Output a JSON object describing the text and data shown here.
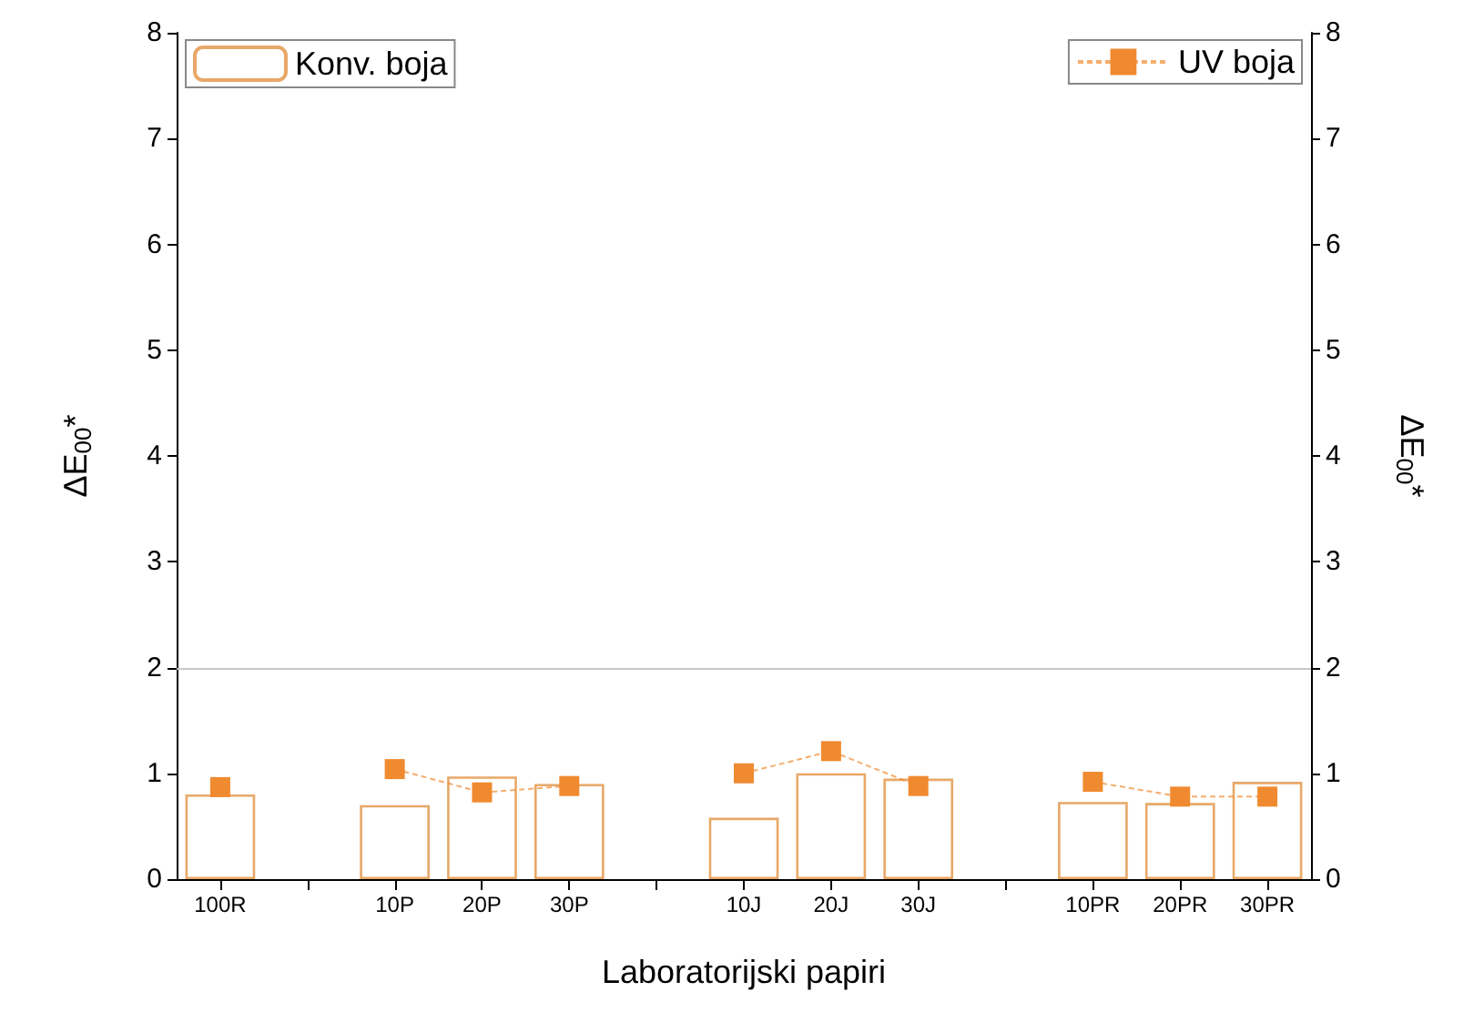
{
  "chart_data": {
    "type": "bar",
    "xlabel": "Laboratorijski papiri",
    "ylabel": "ΔE$_{00}$*",
    "y2label": "ΔE$_{00}$*",
    "categories": [
      "100R",
      null,
      "10P",
      "20P",
      "30P",
      null,
      "10J",
      "20J",
      "30J",
      null,
      "10PR",
      "20PR",
      "30PR"
    ],
    "series": [
      {
        "name": "Konv. boja",
        "color": "#e8a868",
        "values": [
          0.8,
          null,
          0.7,
          0.97,
          0.9,
          null,
          0.58,
          1.0,
          0.95,
          null,
          0.73,
          0.72,
          0.92
        ]
      },
      {
        "name": "UV boja",
        "type": "line",
        "color": "#f08a30",
        "marker": "square",
        "line_style": "dashed",
        "values": [
          0.87,
          null,
          1.04,
          0.82,
          0.88,
          null,
          1.0,
          1.21,
          0.88,
          null,
          0.92,
          0.78,
          0.78
        ]
      }
    ],
    "ylim": [
      0,
      8
    ],
    "yticks": [
      0,
      1,
      2,
      3,
      4,
      5,
      6,
      7,
      8
    ],
    "y2lim": [
      0,
      8
    ],
    "y2ticks": [
      0,
      1,
      2,
      3,
      4,
      5,
      6,
      7,
      8
    ],
    "ref_lines": [
      {
        "axis": "y",
        "value": 2,
        "color": "#c8c8c8"
      }
    ],
    "legend": "top",
    "grid": false
  }
}
